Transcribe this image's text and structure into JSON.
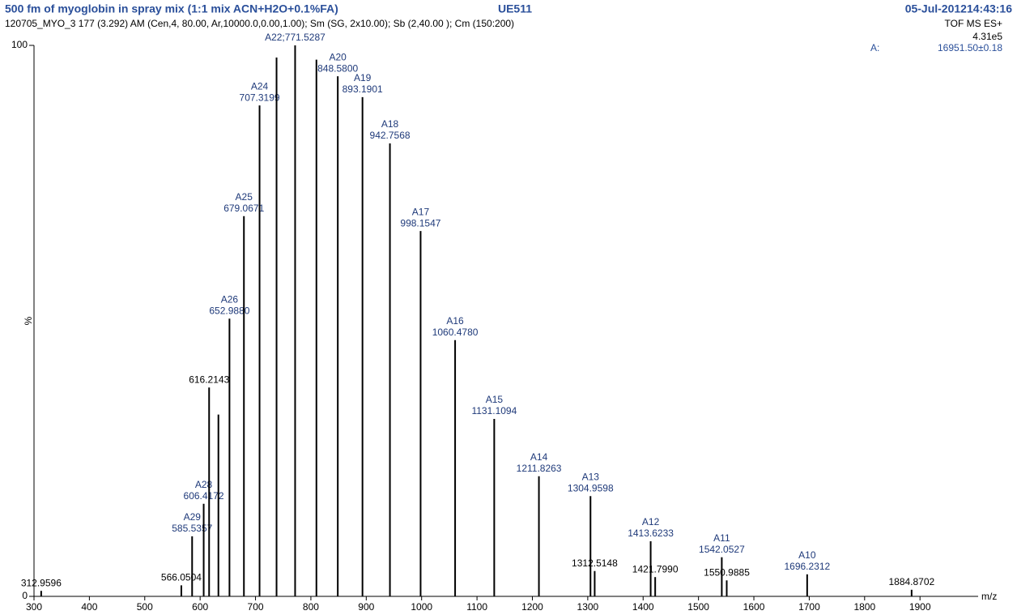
{
  "chart_data": {
    "type": "stem",
    "title": "500 fm of myoglobin in spray mix (1:1 mix ACN+H2O+0.1%FA)",
    "sample_id": "UE511",
    "date": "05-Jul-201214:43:16",
    "subtitle": "120705_MYO_3 177 (3.292) AM (Cen,4, 80.00, Ar,10000.0,0.00,1.00); Sm (SG, 2x10.00); Sb (2,40.00 ); Cm (150:200)",
    "mode": "TOF MS ES+",
    "intensity": "4.31e5",
    "mass_tag": "A:",
    "mass_result": "16951.50±0.18",
    "y_label": "%",
    "x_label": "m/z",
    "color": "#000000",
    "label_color": "#1f3a7a",
    "xlim": [
      300,
      2005
    ],
    "ylim": [
      0,
      100
    ],
    "xticks": [
      300,
      400,
      500,
      600,
      700,
      800,
      900,
      1000,
      1100,
      1200,
      1300,
      1400,
      1500,
      1600,
      1700,
      1800,
      1900
    ],
    "yticks": [
      0,
      100
    ],
    "x": [
      312.9596,
      566.0504,
      585.5357,
      606.4172,
      616.2143,
      633,
      652.988,
      679.0671,
      707.3199,
      738,
      771.5287,
      810,
      848.58,
      893.1901,
      942.7568,
      998.1547,
      1060.478,
      1131.1094,
      1211.8263,
      1304.9598,
      1312.5148,
      1413.6233,
      1421.799,
      1542.0527,
      1550.9885,
      1696.2312,
      1884.8702
    ],
    "values": [
      1,
      2,
      10.9,
      16.8,
      37.9,
      33,
      50.4,
      69,
      89.1,
      97.8,
      100,
      97.4,
      94.4,
      90.6,
      82.2,
      66.3,
      46.5,
      32.2,
      21.8,
      18.2,
      4.6,
      10,
      3.5,
      7.1,
      2.9,
      4,
      1.2
    ],
    "names": [
      null,
      null,
      "A29",
      "A28",
      null,
      null,
      "A26",
      "A25",
      "A24",
      null,
      "A22;771.5287",
      null,
      "A20",
      "A19",
      "A18",
      "A17",
      "A16",
      "A15",
      "A14",
      "A13",
      null,
      "A12",
      null,
      "A11",
      null,
      "A10",
      null
    ],
    "x_labels": [
      "312.9596",
      "566.0504",
      "585.5357",
      "606.4172",
      "616.2143",
      null,
      "652.9880",
      "679.0671",
      "707.3199",
      null,
      null,
      null,
      "848.5800",
      "893.1901",
      "942.7568",
      "998.1547",
      "1060.4780",
      "1131.1094",
      "1211.8263",
      "1304.9598",
      "1312.5148",
      "1413.6233",
      "1421.7990",
      "1542.0527",
      "1550.9885",
      "1696.2312",
      "1884.8702"
    ]
  }
}
